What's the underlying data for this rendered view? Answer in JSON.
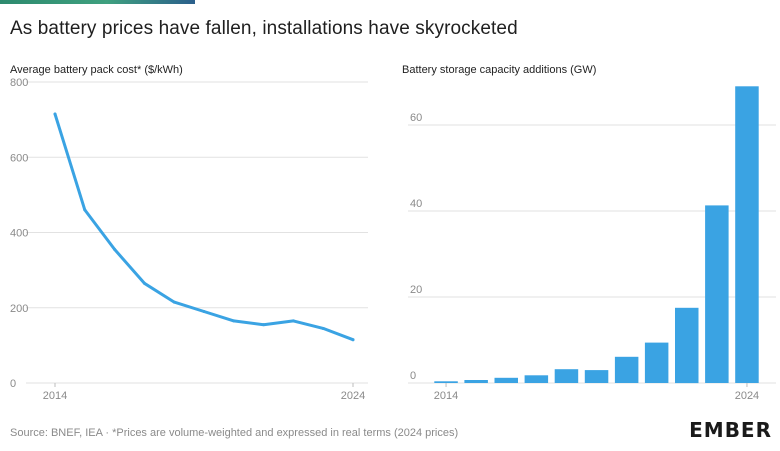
{
  "title": "As battery prices have fallen, installations have skyrocketed",
  "footer": "Source: BNEF, IEA · *Prices are volume-weighted and expressed in real terms (2024 prices)",
  "logo": "EMBER",
  "colors": {
    "series": "#3aa3e3",
    "grid": "#e2e2e2",
    "axis_text": "#8a8a8a",
    "accent": "#3fa07f"
  },
  "chart_data": [
    {
      "type": "line",
      "title": "Average battery pack cost* ($/kWh)",
      "xlabel": "",
      "ylabel": "$/kWh",
      "x": [
        2014,
        2015,
        2016,
        2017,
        2018,
        2019,
        2020,
        2021,
        2022,
        2023,
        2024
      ],
      "values": [
        715,
        460,
        355,
        265,
        215,
        190,
        165,
        155,
        165,
        145,
        115
      ],
      "xticks": [
        "2014",
        "2024"
      ],
      "yticks": [
        "0",
        "200",
        "400",
        "600",
        "800"
      ],
      "ylim": [
        0,
        800
      ]
    },
    {
      "type": "bar",
      "title": "Battery storage capacity additions (GW)",
      "xlabel": "",
      "ylabel": "GW",
      "categories": [
        "2014",
        "2015",
        "2016",
        "2017",
        "2018",
        "2019",
        "2020",
        "2021",
        "2022",
        "2023",
        "2024"
      ],
      "values": [
        0.4,
        0.7,
        1.2,
        1.8,
        3.2,
        3.0,
        6.1,
        9.4,
        17.5,
        41.3,
        69.0
      ],
      "xticks": [
        "2014",
        "2024"
      ],
      "yticks": [
        "0",
        "20",
        "40",
        "60"
      ],
      "ylim": [
        0,
        69
      ]
    }
  ]
}
